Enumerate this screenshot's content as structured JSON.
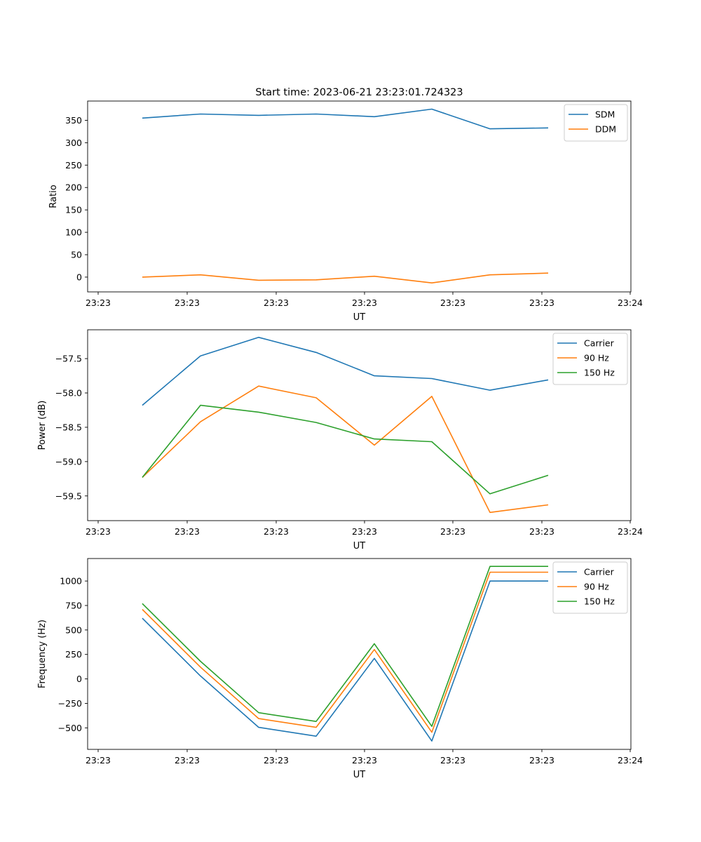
{
  "figure_title": "Start time: 2023-06-21 23:23:01.724323",
  "chart_data": [
    {
      "type": "line",
      "title": "Start time: 2023-06-21 23:23:01.724323",
      "xlabel": "UT",
      "ylabel": "Ratio",
      "x_tick_labels": [
        "23:23",
        "23:23",
        "23:23",
        "23:23",
        "23:23",
        "23:23",
        "23:24"
      ],
      "y_ticks": [
        0,
        50,
        100,
        150,
        200,
        250,
        300,
        350
      ],
      "y_tick_labels": [
        "0",
        "50",
        "100",
        "150",
        "200",
        "250",
        "300",
        "350"
      ],
      "ylim": [
        -33,
        393
      ],
      "legend_position": "top-right",
      "grid": false,
      "series": [
        {
          "name": "SDM",
          "color": "#1f77b4",
          "values": [
            355,
            364,
            361,
            364,
            358,
            375,
            331,
            333
          ]
        },
        {
          "name": "DDM",
          "color": "#ff7f0e",
          "values": [
            0,
            5,
            -7,
            -6,
            2,
            -13,
            5,
            9
          ]
        }
      ]
    },
    {
      "type": "line",
      "xlabel": "UT",
      "ylabel": "Power (dB)",
      "x_tick_labels": [
        "23:23",
        "23:23",
        "23:23",
        "23:23",
        "23:23",
        "23:23",
        "23:24"
      ],
      "y_ticks": [
        -59.5,
        -59.0,
        -58.5,
        -58.0,
        -57.5
      ],
      "y_tick_labels": [
        "−59.5",
        "−59.0",
        "−58.5",
        "−58.0",
        "−57.5"
      ],
      "ylim": [
        -59.86,
        -57.08
      ],
      "legend_position": "top-right",
      "grid": false,
      "series": [
        {
          "name": "Carrier",
          "color": "#1f77b4",
          "values": [
            -58.18,
            -57.46,
            -57.19,
            -57.41,
            -57.75,
            -57.79,
            -57.96,
            -57.81
          ]
        },
        {
          "name": "90 Hz",
          "color": "#ff7f0e",
          "values": [
            -59.23,
            -58.42,
            -57.9,
            -58.07,
            -58.76,
            -58.05,
            -59.74,
            -59.63
          ]
        },
        {
          "name": "150 Hz",
          "color": "#2ca02c",
          "values": [
            -59.23,
            -58.18,
            -58.28,
            -58.43,
            -58.67,
            -58.71,
            -59.47,
            -59.2
          ]
        }
      ]
    },
    {
      "type": "line",
      "xlabel": "UT",
      "ylabel": "Frequency (Hz)",
      "x_tick_labels": [
        "23:23",
        "23:23",
        "23:23",
        "23:23",
        "23:23",
        "23:23",
        "23:24"
      ],
      "y_ticks": [
        -500,
        -250,
        0,
        250,
        500,
        750,
        1000
      ],
      "y_tick_labels": [
        "−500",
        "−250",
        "0",
        "250",
        "500",
        "750",
        "1000"
      ],
      "ylim": [
        -720,
        1230
      ],
      "legend_position": "top-right",
      "grid": false,
      "series": [
        {
          "name": "Carrier",
          "color": "#1f77b4",
          "values": [
            620,
            30,
            -495,
            -585,
            210,
            -635,
            1000,
            1000
          ]
        },
        {
          "name": "90 Hz",
          "color": "#ff7f0e",
          "values": [
            710,
            120,
            -405,
            -495,
            300,
            -545,
            1090,
            1090
          ]
        },
        {
          "name": "150 Hz",
          "color": "#2ca02c",
          "values": [
            770,
            180,
            -345,
            -435,
            360,
            -485,
            1150,
            1150
          ]
        }
      ]
    }
  ]
}
